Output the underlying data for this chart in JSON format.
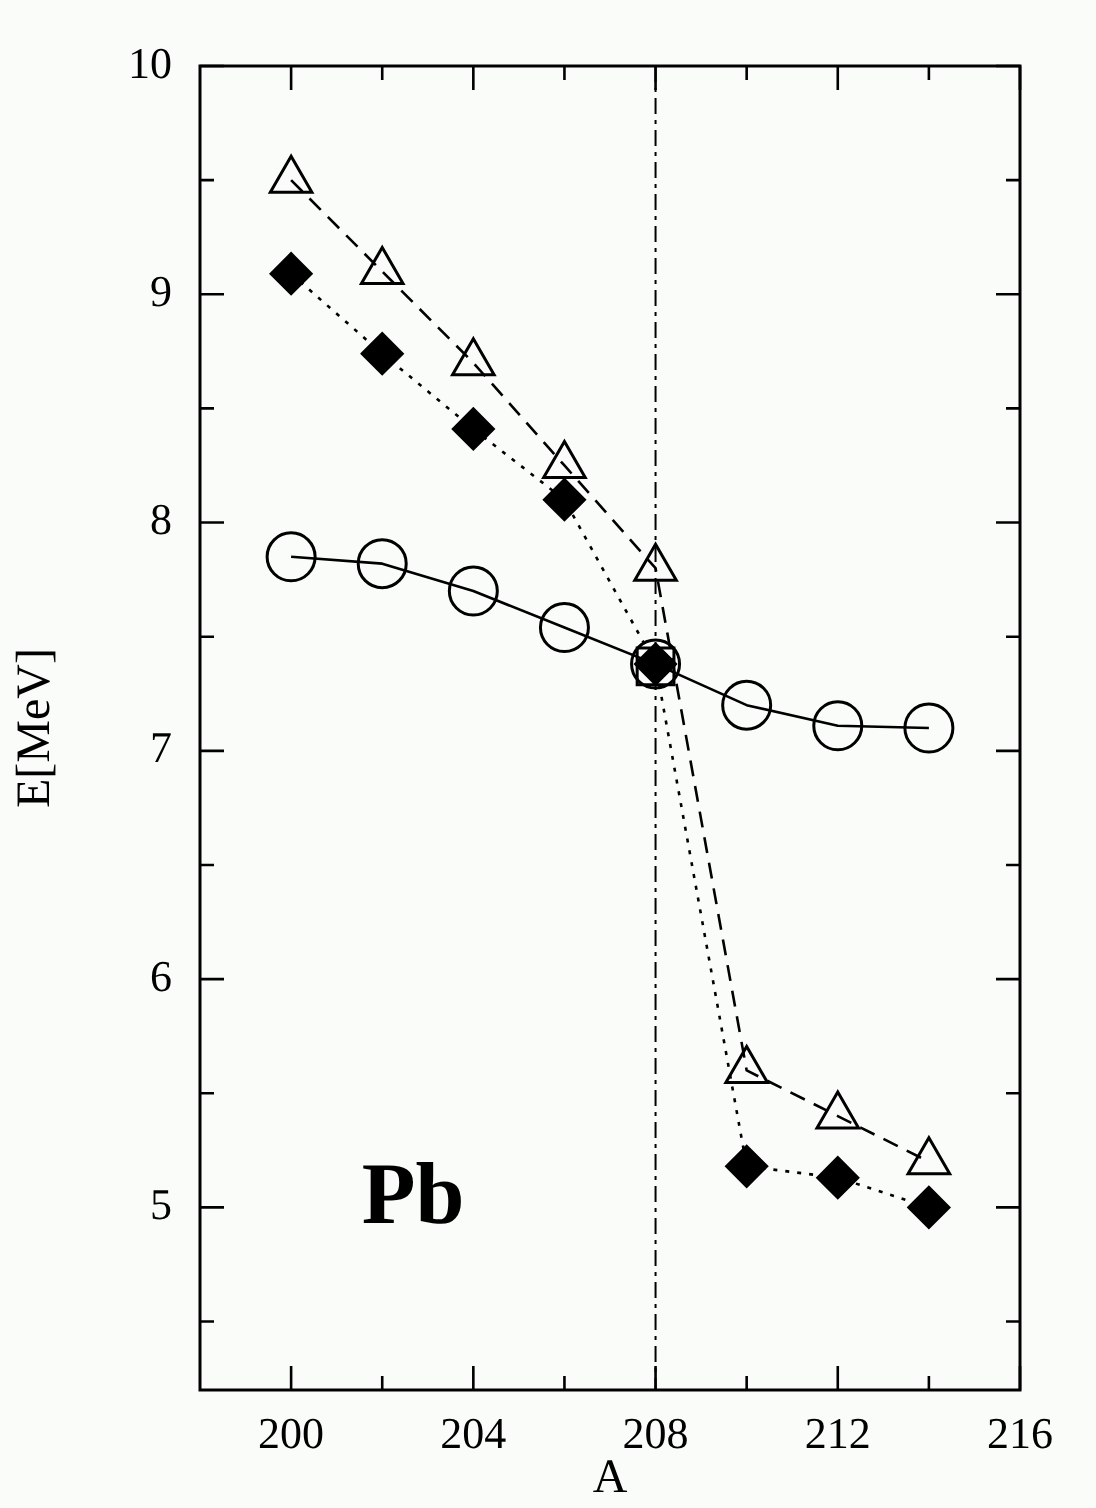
{
  "chart_data": {
    "type": "line",
    "xlabel": "A",
    "ylabel": "E[MeV]",
    "xlim": [
      198,
      216
    ],
    "ylim": [
      4.2,
      10
    ],
    "xticks": [
      200,
      {
        "value": 202,
        "label": null
      },
      204,
      {
        "value": 206,
        "label": null
      },
      208,
      {
        "value": 210,
        "label": null
      },
      212,
      {
        "value": 214,
        "label": null
      },
      216
    ],
    "yticks": [
      {
        "value": 4.5,
        "label": null
      },
      5,
      {
        "value": 5.5,
        "label": null
      },
      6,
      {
        "value": 6.5,
        "label": null
      },
      7,
      {
        "value": 7.5,
        "label": null
      },
      8,
      {
        "value": 8.5,
        "label": null
      },
      9,
      {
        "value": 9.5,
        "label": null
      },
      10
    ],
    "grid": false,
    "legend": false,
    "x": [
      200,
      202,
      204,
      206,
      208,
      210,
      212,
      214
    ],
    "series": [
      {
        "color": "#000000",
        "marker": "triangle",
        "line_style": "dashed",
        "values": [
          9.5,
          9.1,
          8.7,
          8.25,
          7.8,
          5.6,
          5.4,
          5.2
        ]
      },
      {
        "color": "#000000",
        "marker": "diamond",
        "line_style": "dotted",
        "values": [
          9.09,
          8.74,
          8.41,
          8.1,
          7.38,
          5.18,
          5.13,
          5.0
        ]
      },
      {
        "color": "#000000",
        "marker": "circle",
        "line_style": "solid",
        "values": [
          7.85,
          7.82,
          7.7,
          7.54,
          7.38,
          7.2,
          7.11,
          7.1
        ]
      },
      {
        "type": "scatter",
        "color": "#000000",
        "marker": "square",
        "x": [
          208
        ],
        "values": [
          7.37
        ]
      }
    ],
    "ref_lines": [
      {
        "axis": "x",
        "value": 208,
        "color": "#000000",
        "line_style": "dashdot"
      }
    ],
    "annotations": [
      "Pb"
    ]
  }
}
